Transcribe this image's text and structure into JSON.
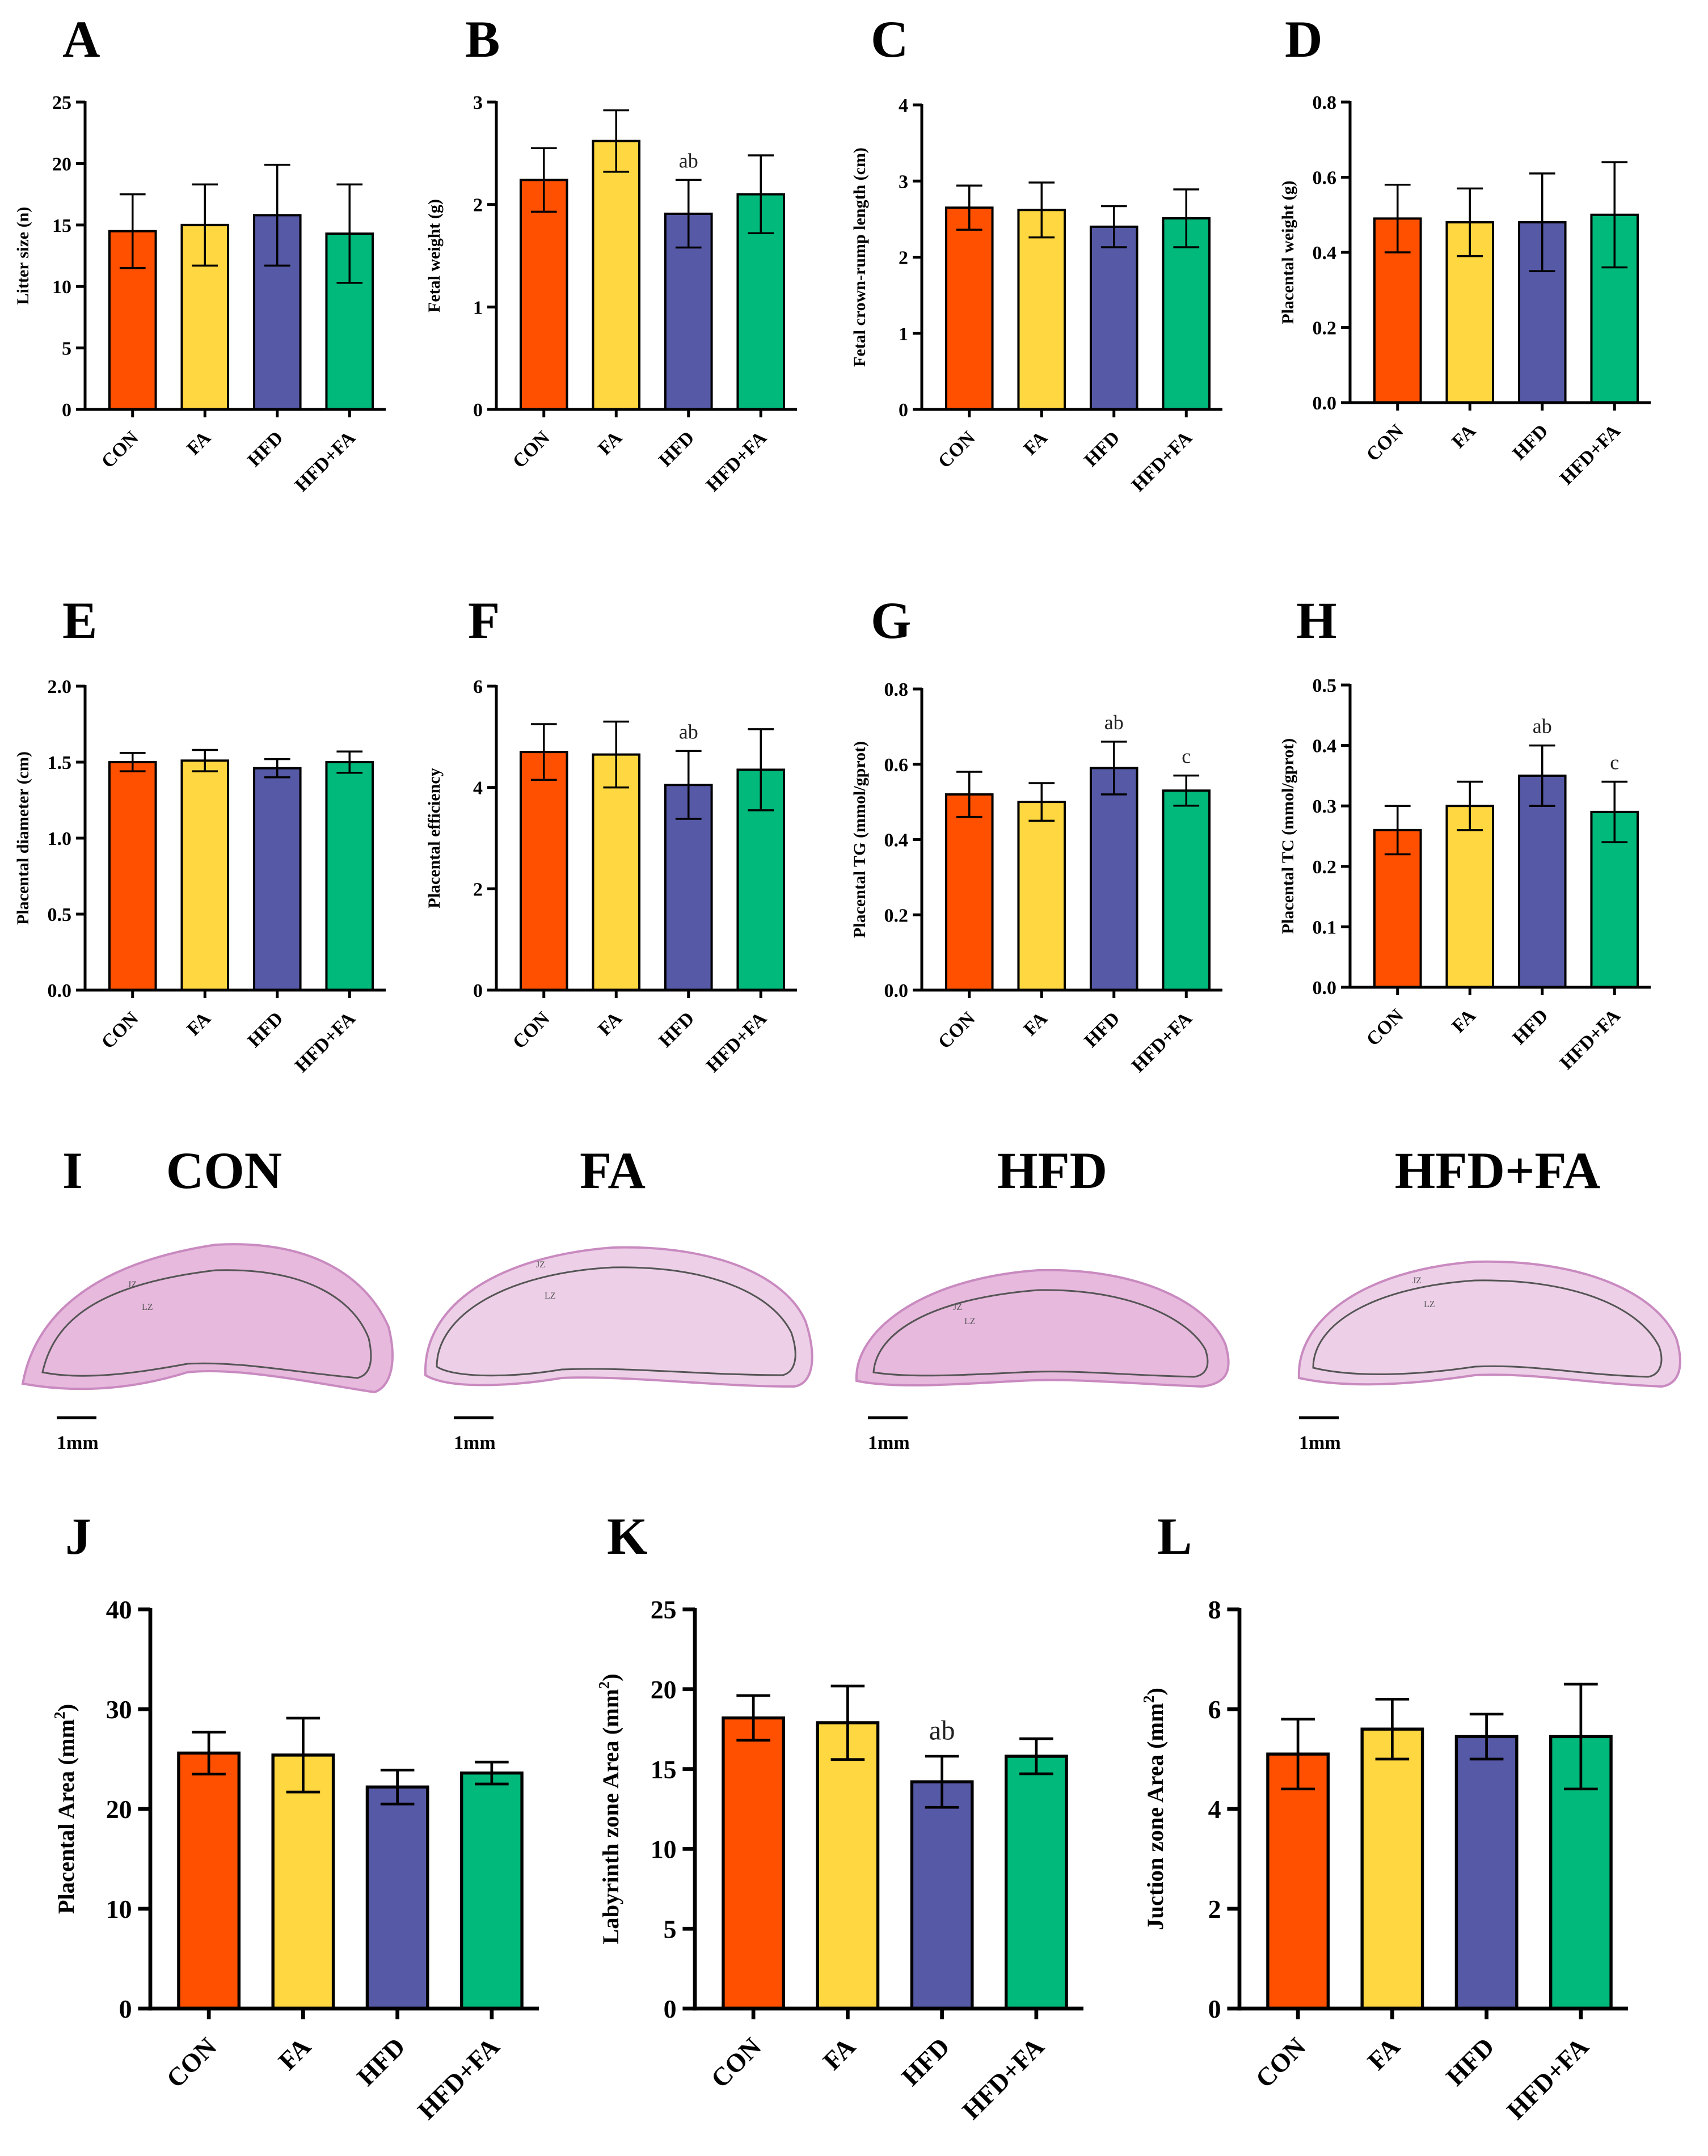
{
  "groups": [
    "CON",
    "FA",
    "HFD",
    "HFD+FA"
  ],
  "colors": {
    "CON": "#FF5000",
    "FA": "#FFD740",
    "HFD": "#5659A6",
    "HFD+FA": "#00B97A",
    "axis": "#000000",
    "tissue": "#E7B9DD",
    "tissue_edge": "#C98AC0",
    "boundary": "#555555"
  },
  "chart_data": [
    {
      "id": "A",
      "letter": "A",
      "type": "bar",
      "ylabel": "Litter size (n)",
      "ylim": [
        0,
        25
      ],
      "yticks": [
        "0",
        "5",
        "10",
        "15",
        "20",
        "25"
      ],
      "series": [
        {
          "name": "mean",
          "values": [
            14.5,
            15.0,
            15.8,
            14.3
          ]
        },
        {
          "name": "sd",
          "values": [
            3.0,
            3.3,
            4.1,
            4.0
          ]
        }
      ],
      "annotations": [
        "",
        "",
        "",
        ""
      ]
    },
    {
      "id": "B",
      "letter": "B",
      "type": "bar",
      "ylabel": "Fetal weight (g)",
      "ylim": [
        0,
        3
      ],
      "yticks": [
        "0",
        "1",
        "2",
        "3"
      ],
      "series": [
        {
          "name": "mean",
          "values": [
            2.24,
            2.62,
            1.91,
            2.1
          ]
        },
        {
          "name": "sd",
          "values": [
            0.31,
            0.3,
            0.33,
            0.38
          ]
        }
      ],
      "annotations": [
        "",
        "",
        "ab",
        ""
      ]
    },
    {
      "id": "C",
      "letter": "C",
      "type": "bar",
      "ylabel": "Fetal crown-rump length (cm)",
      "ylim": [
        0,
        4
      ],
      "yticks": [
        "0",
        "1",
        "2",
        "3",
        "4"
      ],
      "series": [
        {
          "name": "mean",
          "values": [
            2.65,
            2.62,
            2.4,
            2.51
          ]
        },
        {
          "name": "sd",
          "values": [
            0.29,
            0.36,
            0.27,
            0.38
          ]
        }
      ],
      "annotations": [
        "",
        "",
        "",
        ""
      ]
    },
    {
      "id": "D",
      "letter": "D",
      "type": "bar",
      "ylabel": "Placental weight (g)",
      "ylim": [
        0,
        0.8
      ],
      "yticks": [
        "0.0",
        "0.2",
        "0.4",
        "0.6",
        "0.8"
      ],
      "series": [
        {
          "name": "mean",
          "values": [
            0.49,
            0.48,
            0.48,
            0.5
          ]
        },
        {
          "name": "sd",
          "values": [
            0.09,
            0.09,
            0.13,
            0.14
          ]
        }
      ],
      "annotations": [
        "",
        "",
        "",
        ""
      ]
    },
    {
      "id": "E",
      "letter": "E",
      "type": "bar",
      "ylabel": "Placental diameter (cm)",
      "ylim": [
        0,
        2
      ],
      "yticks": [
        "0.0",
        "0.5",
        "1.0",
        "1.5",
        "2.0"
      ],
      "series": [
        {
          "name": "mean",
          "values": [
            1.5,
            1.51,
            1.46,
            1.5
          ]
        },
        {
          "name": "sd",
          "values": [
            0.06,
            0.07,
            0.06,
            0.07
          ]
        }
      ],
      "annotations": [
        "",
        "",
        "",
        ""
      ]
    },
    {
      "id": "F",
      "letter": "F",
      "type": "bar",
      "ylabel": "Placental efficiency",
      "ylim": [
        0,
        6
      ],
      "yticks": [
        "0",
        "2",
        "4",
        "6"
      ],
      "series": [
        {
          "name": "mean",
          "values": [
            4.7,
            4.65,
            4.05,
            4.35
          ]
        },
        {
          "name": "sd",
          "values": [
            0.55,
            0.65,
            0.67,
            0.8
          ]
        }
      ],
      "annotations": [
        "",
        "",
        "ab",
        ""
      ]
    },
    {
      "id": "G",
      "letter": "G",
      "type": "bar",
      "ylabel": "Placental TG (mmol/gprot)",
      "ylim": [
        0,
        0.8
      ],
      "yticks": [
        "0.0",
        "0.2",
        "0.4",
        "0.6",
        "0.8"
      ],
      "series": [
        {
          "name": "mean",
          "values": [
            0.52,
            0.5,
            0.59,
            0.53
          ]
        },
        {
          "name": "sd",
          "values": [
            0.06,
            0.05,
            0.07,
            0.04
          ]
        }
      ],
      "annotations": [
        "",
        "",
        "ab",
        "c"
      ]
    },
    {
      "id": "H",
      "letter": "H",
      "type": "bar",
      "ylabel": "Placental TC (mmol/gprot)",
      "ylim": [
        0,
        0.5
      ],
      "yticks": [
        "0.0",
        "0.1",
        "0.2",
        "0.3",
        "0.4",
        "0.5"
      ],
      "series": [
        {
          "name": "mean",
          "values": [
            0.26,
            0.3,
            0.35,
            0.29
          ]
        },
        {
          "name": "sd",
          "values": [
            0.04,
            0.04,
            0.05,
            0.05
          ]
        }
      ],
      "annotations": [
        "",
        "",
        "ab",
        "c"
      ]
    },
    {
      "id": "J",
      "letter": "J",
      "type": "bar",
      "ylabel": "Placental Area (mm",
      "ylabel_sup": "2",
      "ylabel_end": ")",
      "ylim": [
        0,
        40
      ],
      "yticks": [
        "0",
        "10",
        "20",
        "30",
        "40"
      ],
      "series": [
        {
          "name": "mean",
          "values": [
            25.6,
            25.4,
            22.2,
            23.6
          ]
        },
        {
          "name": "sd",
          "values": [
            2.1,
            3.7,
            1.7,
            1.1
          ]
        }
      ],
      "annotations": [
        "",
        "",
        "",
        ""
      ]
    },
    {
      "id": "K",
      "letter": "K",
      "type": "bar",
      "ylabel": "Labyrinth zone Area (mm",
      "ylabel_sup": "2",
      "ylabel_end": ")",
      "ylim": [
        0,
        25
      ],
      "yticks": [
        "0",
        "5",
        "10",
        "15",
        "20",
        "25"
      ],
      "series": [
        {
          "name": "mean",
          "values": [
            18.2,
            17.9,
            14.2,
            15.8
          ]
        },
        {
          "name": "sd",
          "values": [
            1.4,
            2.3,
            1.6,
            1.1
          ]
        }
      ],
      "annotations": [
        "",
        "",
        "ab",
        ""
      ]
    },
    {
      "id": "L",
      "letter": "L",
      "type": "bar",
      "ylabel": "Juction zone Area (mm",
      "ylabel_sup": "2",
      "ylabel_end": ")",
      "ylim": [
        0,
        8
      ],
      "yticks": [
        "0",
        "2",
        "4",
        "6",
        "8"
      ],
      "series": [
        {
          "name": "mean",
          "values": [
            5.1,
            5.6,
            5.45,
            5.45
          ]
        },
        {
          "name": "sd",
          "values": [
            0.7,
            0.6,
            0.45,
            1.05
          ]
        }
      ],
      "annotations": [
        "",
        "",
        "",
        ""
      ]
    }
  ],
  "histology": {
    "letter": "I",
    "titles": [
      "CON",
      "FA",
      "HFD",
      "HFD+FA"
    ],
    "zone_labels": [
      "JZ",
      "LZ"
    ],
    "scale_bar_label": "1mm"
  }
}
